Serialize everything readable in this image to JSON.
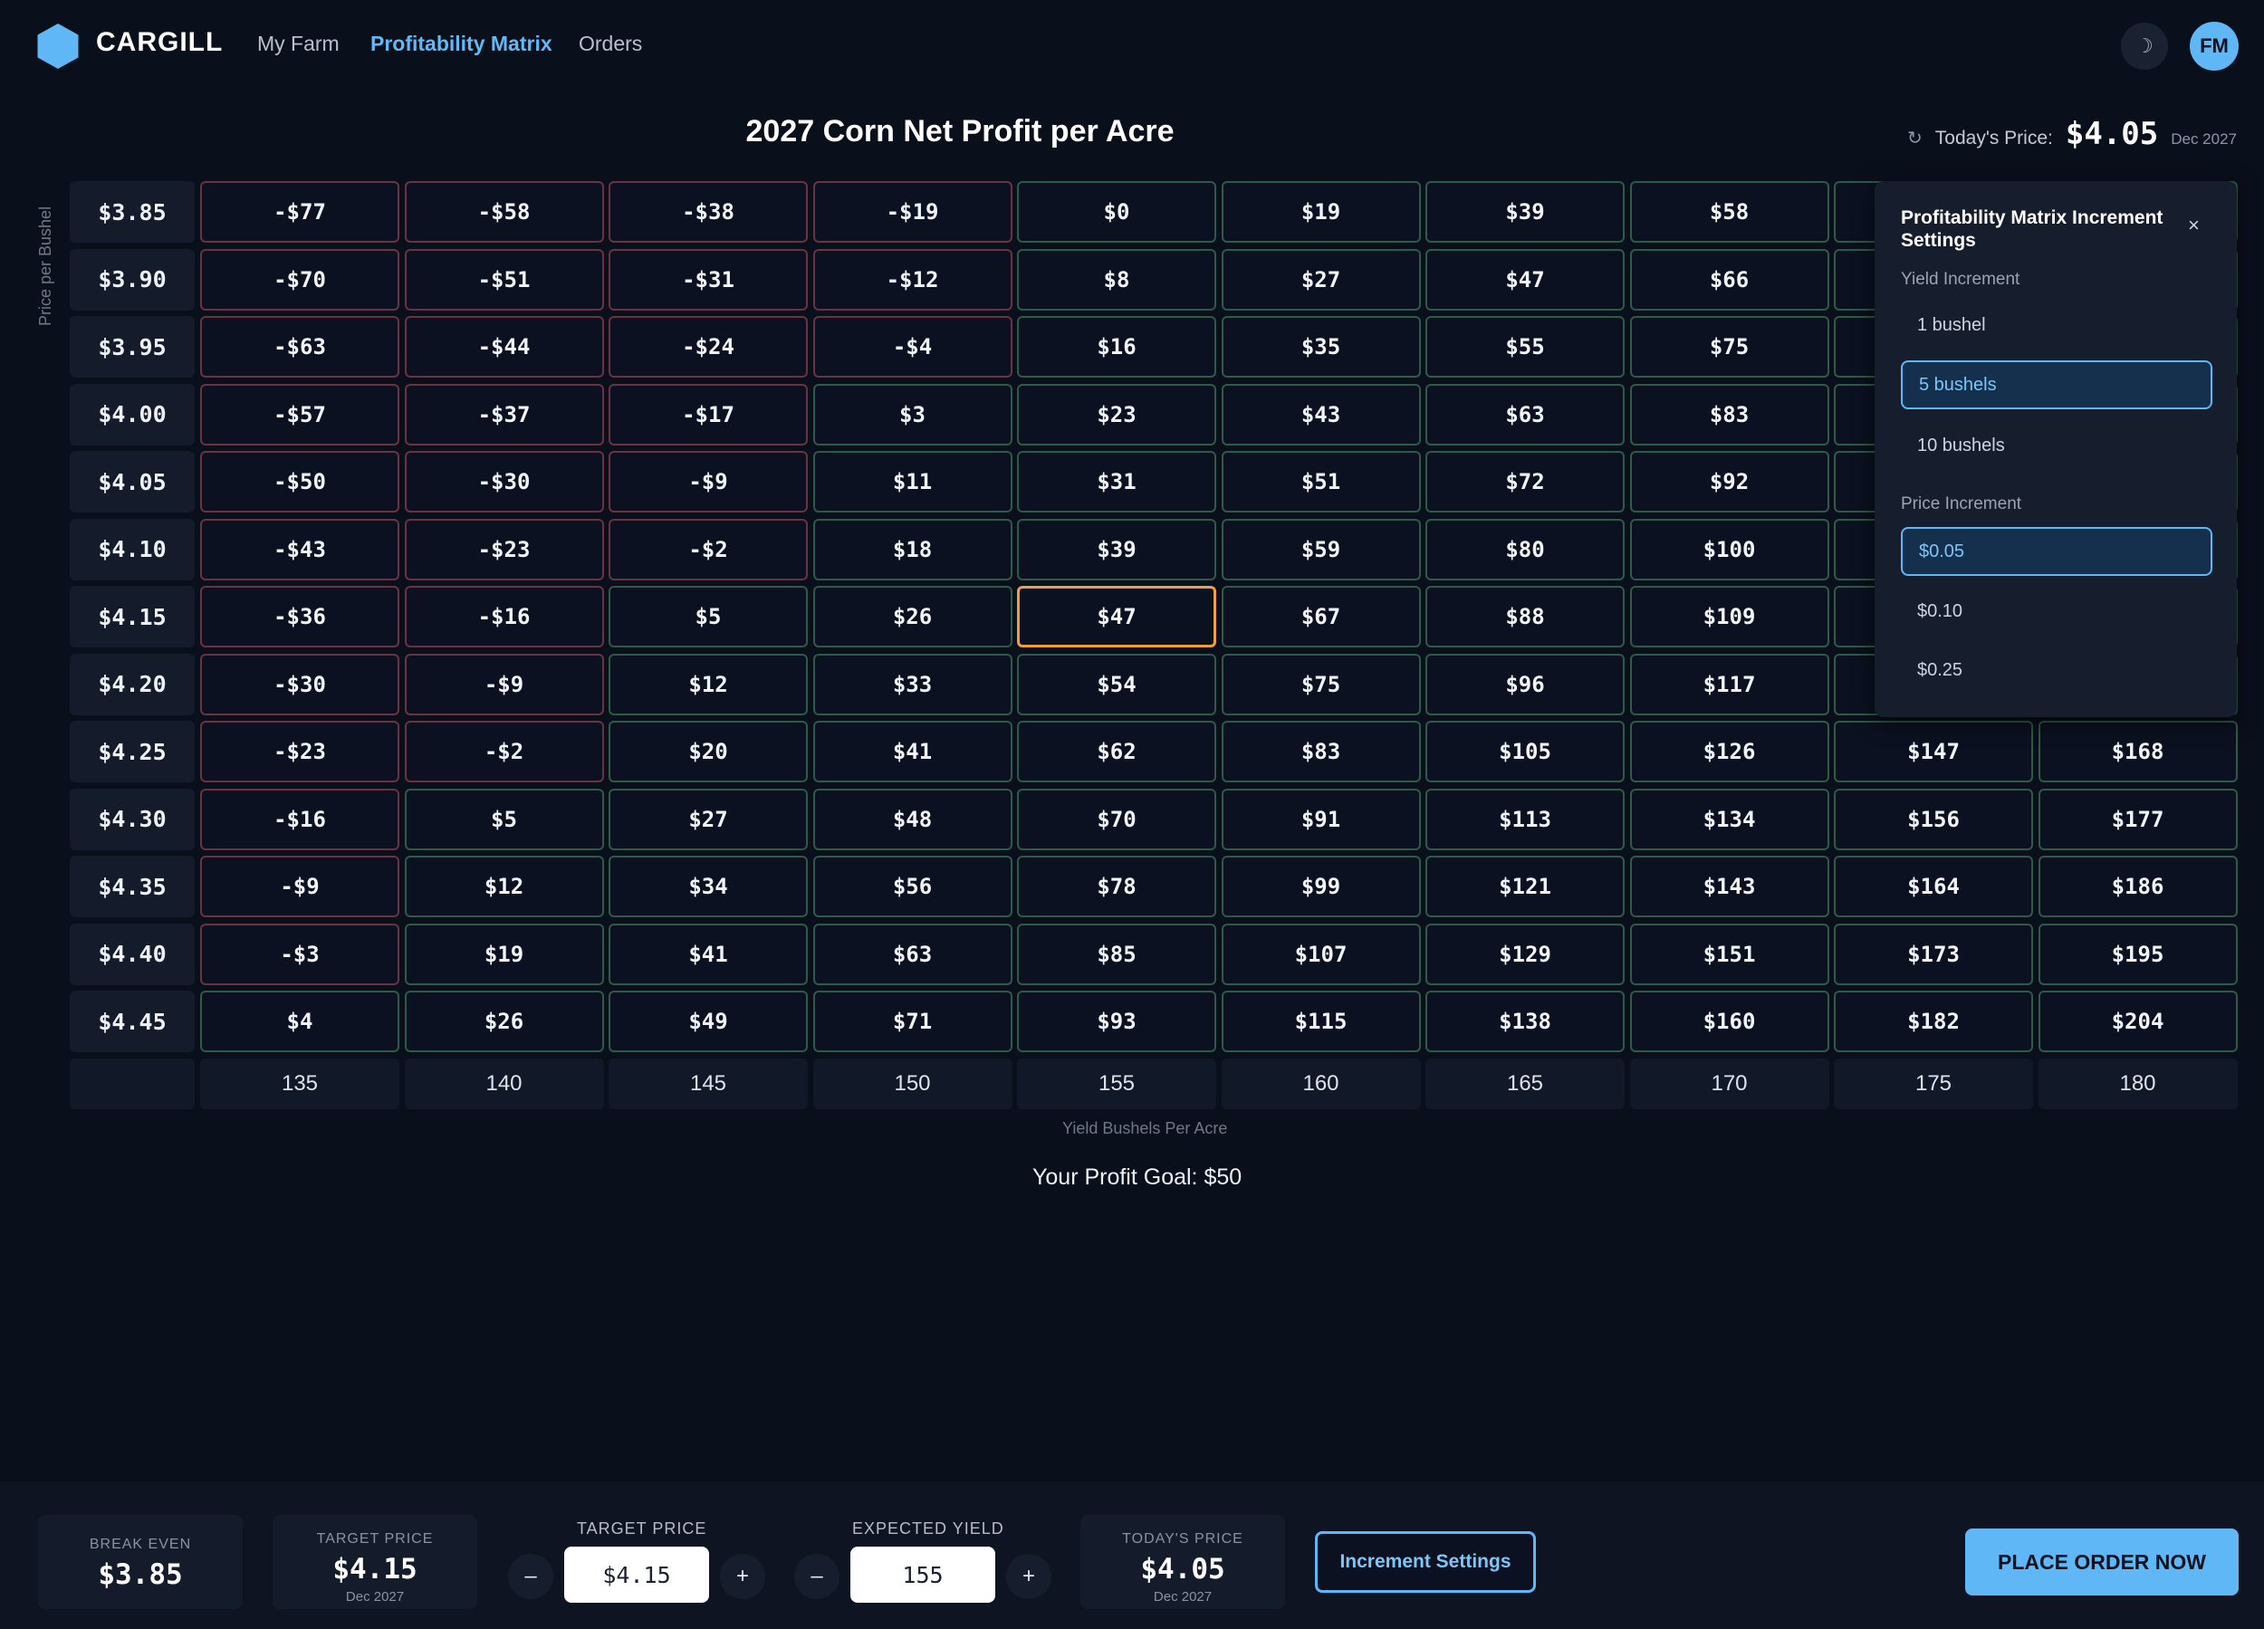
{
  "header": {
    "brand": "CARGILL",
    "nav": [
      {
        "label": "My Farm",
        "active": false
      },
      {
        "label": "Profitability Matrix",
        "active": true
      },
      {
        "label": "Orders",
        "active": false
      }
    ],
    "theme_toggle": "☽",
    "avatar_initials": "FM"
  },
  "matrix": {
    "title": "2027 Corn Net Profit per Acre",
    "y_axis_label": "Price per Bushel",
    "x_axis_label": "Yield Bushels Per Acre",
    "profit_goal": "Your Profit Goal: $50",
    "columns": [
      "135",
      "140",
      "145",
      "150",
      "155",
      "160",
      "165",
      "170",
      "175",
      "180"
    ],
    "rows": [
      {
        "price": "$3.85",
        "values": [
          "-$77",
          "-$58",
          "-$38",
          "-$19",
          "$0",
          "$19",
          "$39",
          "$58",
          "",
          ""
        ]
      },
      {
        "price": "$3.90",
        "values": [
          "-$70",
          "-$51",
          "-$31",
          "-$12",
          "$8",
          "$27",
          "$47",
          "$66",
          "",
          ""
        ]
      },
      {
        "price": "$3.95",
        "values": [
          "-$63",
          "-$44",
          "-$24",
          "-$4",
          "$16",
          "$35",
          "$55",
          "$75",
          "",
          ""
        ]
      },
      {
        "price": "$4.00",
        "values": [
          "-$57",
          "-$37",
          "-$17",
          "$3",
          "$23",
          "$43",
          "$63",
          "$83",
          "",
          ""
        ]
      },
      {
        "price": "$4.05",
        "values": [
          "-$50",
          "-$30",
          "-$9",
          "$11",
          "$31",
          "$51",
          "$72",
          "$92",
          "",
          ""
        ]
      },
      {
        "price": "$4.10",
        "values": [
          "-$43",
          "-$23",
          "-$2",
          "$18",
          "$39",
          "$59",
          "$80",
          "$100",
          "",
          ""
        ]
      },
      {
        "price": "$4.15",
        "values": [
          "-$36",
          "-$16",
          "$5",
          "$26",
          "$47",
          "$67",
          "$88",
          "$109",
          "",
          ""
        ]
      },
      {
        "price": "$4.20",
        "values": [
          "-$30",
          "-$9",
          "$12",
          "$33",
          "$54",
          "$75",
          "$96",
          "$117",
          "",
          ""
        ]
      },
      {
        "price": "$4.25",
        "values": [
          "-$23",
          "-$2",
          "$20",
          "$41",
          "$62",
          "$83",
          "$105",
          "$126",
          "$147",
          "$168"
        ]
      },
      {
        "price": "$4.30",
        "values": [
          "-$16",
          "$5",
          "$27",
          "$48",
          "$70",
          "$91",
          "$113",
          "$134",
          "$156",
          "$177"
        ]
      },
      {
        "price": "$4.35",
        "values": [
          "-$9",
          "$12",
          "$34",
          "$56",
          "$78",
          "$99",
          "$121",
          "$143",
          "$164",
          "$186"
        ]
      },
      {
        "price": "$4.40",
        "values": [
          "-$3",
          "$19",
          "$41",
          "$63",
          "$85",
          "$107",
          "$129",
          "$151",
          "$173",
          "$195"
        ]
      },
      {
        "price": "$4.45",
        "values": [
          "$4",
          "$26",
          "$49",
          "$71",
          "$93",
          "$115",
          "$138",
          "$160",
          "$182",
          "$204"
        ]
      }
    ],
    "selected": {
      "row": 6,
      "col": 4
    },
    "colors": {
      "positive_border": "#2f5a45",
      "negative_border": "#6a3340",
      "selected_border": "#f0a03a"
    }
  },
  "today_price": {
    "label": "Today's Price:",
    "value": "$4.05",
    "month": "Dec 2027",
    "refresh_icon": "↻"
  },
  "popover": {
    "title": "Profitability Matrix Increment Settings",
    "close": "×",
    "yield_label": "Yield Increment",
    "yield_options": [
      "1 bushel",
      "5 bushels",
      "10 bushels"
    ],
    "yield_selected": 1,
    "price_label": "Price Increment",
    "price_options": [
      "$0.05",
      "$0.10",
      "$0.25"
    ],
    "price_selected": 0
  },
  "bottom": {
    "break_even": {
      "label": "BREAK EVEN",
      "value": "$3.85"
    },
    "target_card": {
      "label": "TARGET PRICE",
      "value": "$4.15",
      "month": "Dec 2027"
    },
    "target_stepper": {
      "label": "TARGET PRICE",
      "value": "$4.15",
      "minus": "–",
      "plus": "+"
    },
    "yield_stepper": {
      "label": "EXPECTED YIELD",
      "value": "155",
      "minus": "–",
      "plus": "+"
    },
    "today_card": {
      "label": "TODAY'S PRICE",
      "value": "$4.05",
      "month": "Dec 2027"
    },
    "increment_button": "Increment Settings",
    "order_button": "PLACE ORDER NOW"
  }
}
